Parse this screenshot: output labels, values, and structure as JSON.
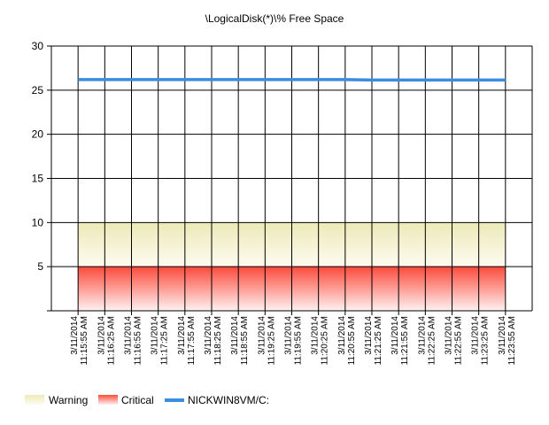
{
  "chart_data": {
    "type": "line",
    "title": "\\LogicalDisk(*)\\% Free Space",
    "xlabel": "",
    "ylabel": "",
    "ylim": [
      0,
      30
    ],
    "y_ticks": [
      5,
      10,
      15,
      20,
      25,
      30
    ],
    "grid": true,
    "legend_position": "bottom-left",
    "categories": [
      [
        "3/11/2014",
        "11:15:55 AM"
      ],
      [
        "3/11/2014",
        "11:16:25 AM"
      ],
      [
        "3/11/2014",
        "11:16:55 AM"
      ],
      [
        "3/11/2014",
        "11:17:25 AM"
      ],
      [
        "3/11/2014",
        "11:17:55 AM"
      ],
      [
        "3/11/2014",
        "11:18:25 AM"
      ],
      [
        "3/11/2014",
        "11:18:55 AM"
      ],
      [
        "3/11/2014",
        "11:19:25 AM"
      ],
      [
        "3/11/2014",
        "11:19:55 AM"
      ],
      [
        "3/11/2014",
        "11:20:25 AM"
      ],
      [
        "3/11/2014",
        "11:20:55 AM"
      ],
      [
        "3/11/2014",
        "11:21:25 AM"
      ],
      [
        "3/11/2014",
        "11:21:55 AM"
      ],
      [
        "3/11/2014",
        "11:22:25 AM"
      ],
      [
        "3/11/2014",
        "11:22:55 AM"
      ],
      [
        "3/11/2014",
        "11:23:25 AM"
      ],
      [
        "3/11/2014",
        "11:23:55 AM"
      ]
    ],
    "bands": [
      {
        "name": "Warning",
        "from": 5,
        "to": 10,
        "color_top": "#ece9b8",
        "color_bottom": "#fdfcf0"
      },
      {
        "name": "Critical",
        "from": 0,
        "to": 5,
        "color_top": "#fb4a3c",
        "color_bottom": "#fff2f1"
      }
    ],
    "series": [
      {
        "name": "NICKWIN8VM/C:",
        "color": "#3b8ddd",
        "values": [
          26.2,
          26.2,
          26.2,
          26.2,
          26.2,
          26.2,
          26.2,
          26.2,
          26.2,
          26.2,
          26.2,
          26.15,
          26.15,
          26.15,
          26.15,
          26.15,
          26.15
        ]
      }
    ]
  }
}
